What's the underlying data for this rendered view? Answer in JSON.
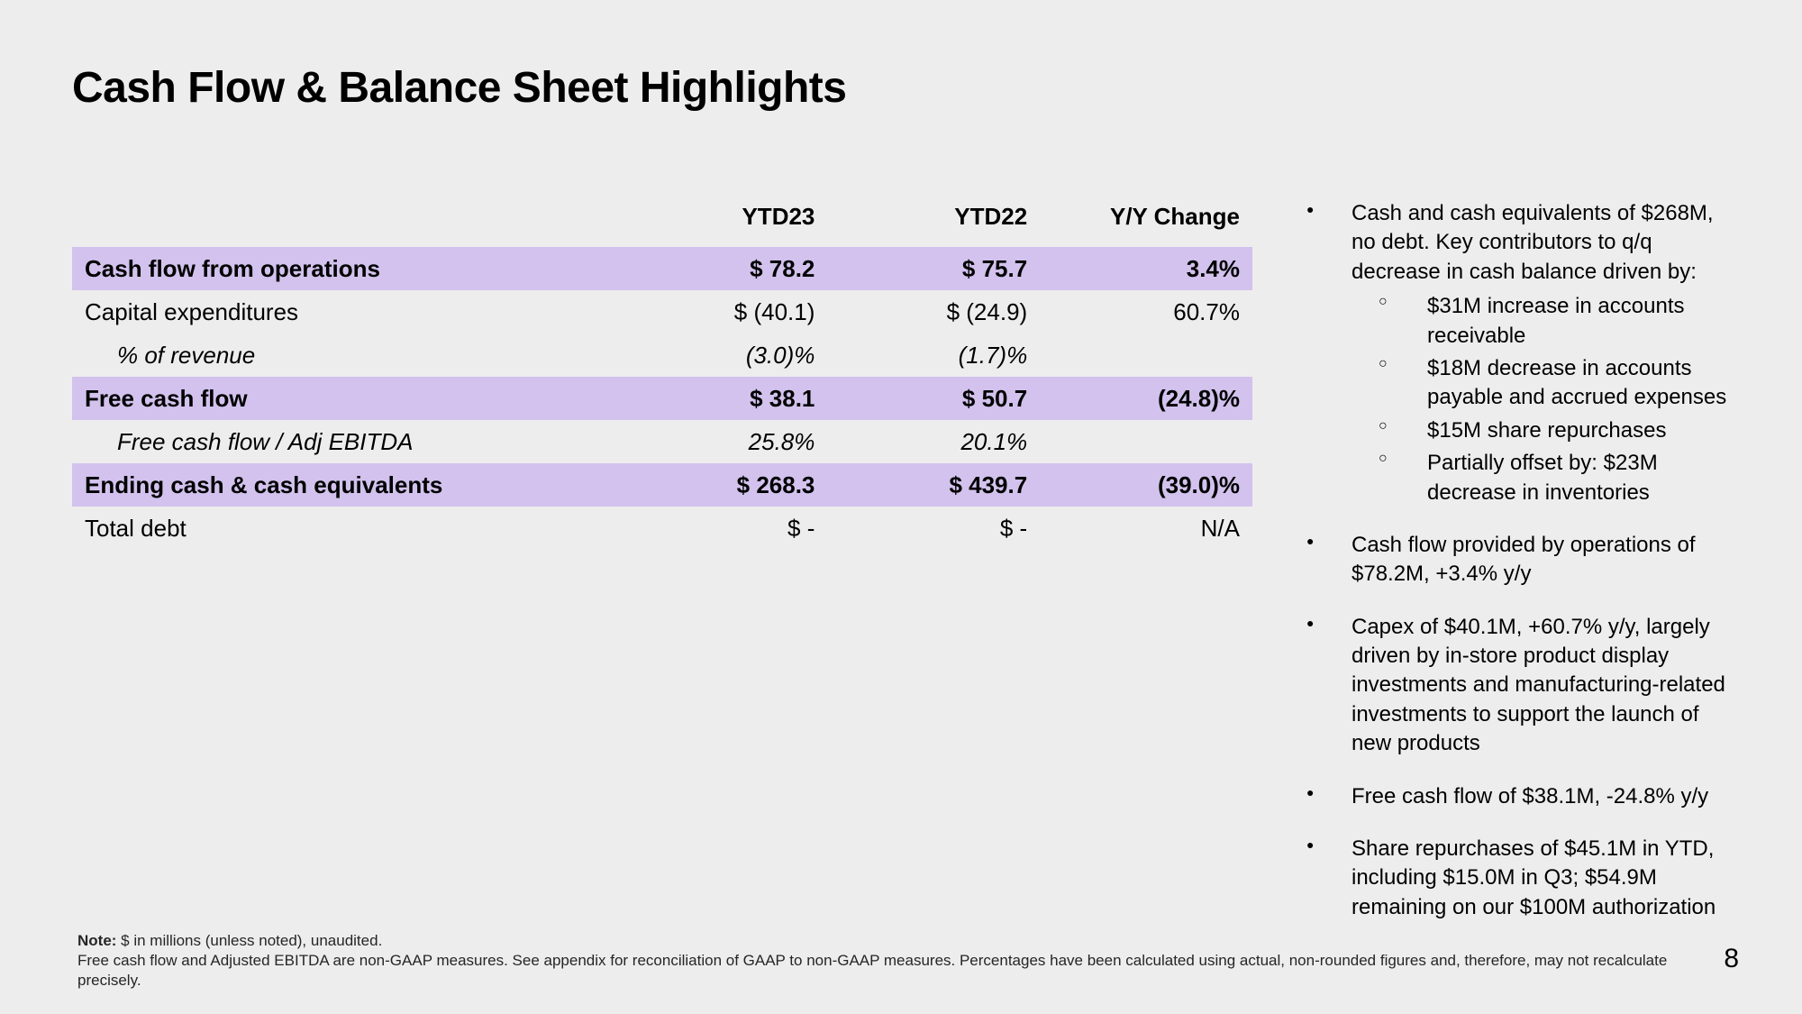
{
  "title": "Cash Flow & Balance Sheet Highlights",
  "page_number": "8",
  "colors": {
    "background": "#ededed",
    "highlight_row": "#d2c2ed",
    "text": "#000000"
  },
  "table": {
    "columns": [
      "",
      "YTD23",
      "YTD22",
      "Y/Y Change"
    ],
    "rows": [
      {
        "label": "Cash flow from operations",
        "ytd23": "$ 78.2",
        "ytd22": "$ 75.7",
        "yy": "3.4%",
        "highlight": true
      },
      {
        "label": "Capital expenditures",
        "ytd23": "$ (40.1)",
        "ytd22": "$ (24.9)",
        "yy": "60.7%"
      },
      {
        "label": "% of revenue",
        "ytd23": "(3.0)%",
        "ytd22": "(1.7)%",
        "yy": "",
        "italic": true,
        "indent": true
      },
      {
        "label": "Free cash flow",
        "ytd23": "$ 38.1",
        "ytd22": "$ 50.7",
        "yy": "(24.8)%",
        "highlight": true
      },
      {
        "label": "Free cash flow / Adj EBITDA",
        "ytd23": "25.8%",
        "ytd22": "20.1%",
        "yy": "",
        "italic": true,
        "indent": true
      },
      {
        "label": "Ending cash & cash equivalents",
        "ytd23": "$ 268.3",
        "ytd22": "$ 439.7",
        "yy": "(39.0)%",
        "highlight": true
      },
      {
        "label": "Total debt",
        "ytd23": "$ -",
        "ytd22": "$ -",
        "yy": "N/A"
      }
    ]
  },
  "bullets": [
    {
      "text": "Cash and cash equivalents of $268M, no debt. Key contributors to q/q decrease in cash balance driven by:",
      "sub": [
        "$31M increase in accounts receivable",
        "$18M decrease in accounts payable and accrued expenses",
        "$15M share repurchases",
        "Partially offset by: $23M decrease in inventories"
      ]
    },
    {
      "text": "Cash flow provided by operations of $78.2M, +3.4% y/y"
    },
    {
      "text": "Capex of $40.1M, +60.7% y/y, largely driven by in-store product display investments and manufacturing-related investments to support the launch of new products"
    },
    {
      "text": "Free cash flow of $38.1M, -24.8% y/y"
    },
    {
      "text": "Share repurchases of $45.1M in YTD, including $15.0M in Q3; $54.9M remaining on our $100M authorization"
    }
  ],
  "footnote": {
    "label": "Note:",
    "line1": " $ in millions (unless noted), unaudited.",
    "line2": "Free cash flow and Adjusted EBITDA are non-GAAP measures. See appendix for reconciliation of GAAP to non-GAAP measures. Percentages have been calculated using actual, non-rounded figures and, therefore, may not recalculate precisely."
  }
}
